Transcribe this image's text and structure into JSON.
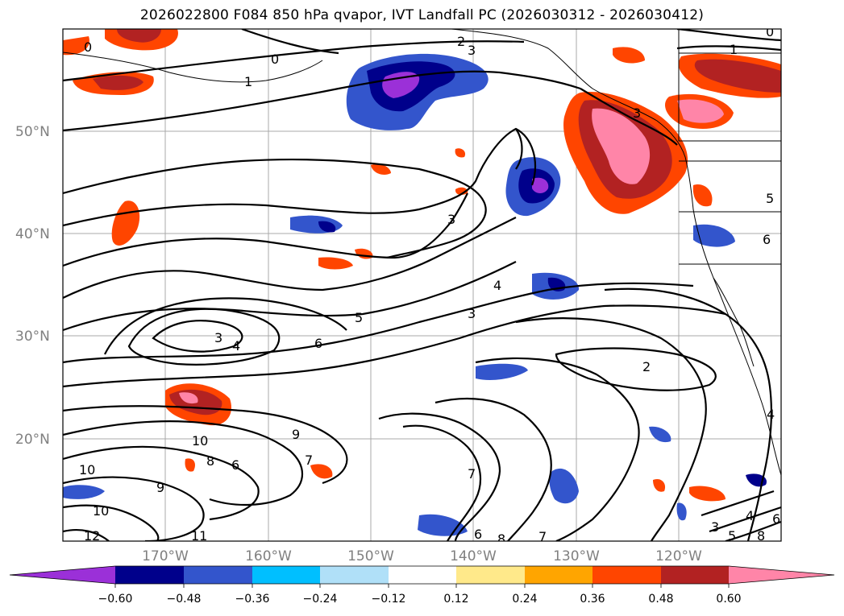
{
  "title": "2026022800 F084 850 hPa qvapor, IVT Landfall PC (2026030312 - 2026030412)",
  "map": {
    "lon_range": [
      -180,
      -110
    ],
    "lat_range": [
      10,
      60
    ],
    "lat_ticks": [
      "50°N",
      "40°N",
      "30°N",
      "20°N"
    ],
    "lon_ticks": [
      "170°W",
      "160°W",
      "150°W",
      "140°W",
      "130°W",
      "120°W"
    ],
    "contour_labels": [
      "0",
      "0",
      "1",
      "2",
      "3",
      "3",
      "1",
      "0",
      "3",
      "5",
      "6",
      "3",
      "4",
      "5",
      "6",
      "4",
      "3",
      "2",
      "10",
      "9",
      "8",
      "6",
      "7",
      "10",
      "9",
      "10",
      "12",
      "11",
      "7",
      "6",
      "8",
      "7",
      "3",
      "4",
      "5",
      "8",
      "6",
      "4"
    ]
  },
  "colorbar": {
    "tick_labels": [
      "−0.60",
      "−0.48",
      "−0.36",
      "−0.24",
      "−0.12",
      "0.12",
      "0.24",
      "0.36",
      "0.48",
      "0.60"
    ],
    "colors": [
      "#9b30d8",
      "#00008b",
      "#3355cc",
      "#00bfff",
      "#b0e0f8",
      "#ffffff",
      "#ffe98a",
      "#ffa500",
      "#ff4500",
      "#b22222",
      "#ff85a8"
    ]
  }
}
